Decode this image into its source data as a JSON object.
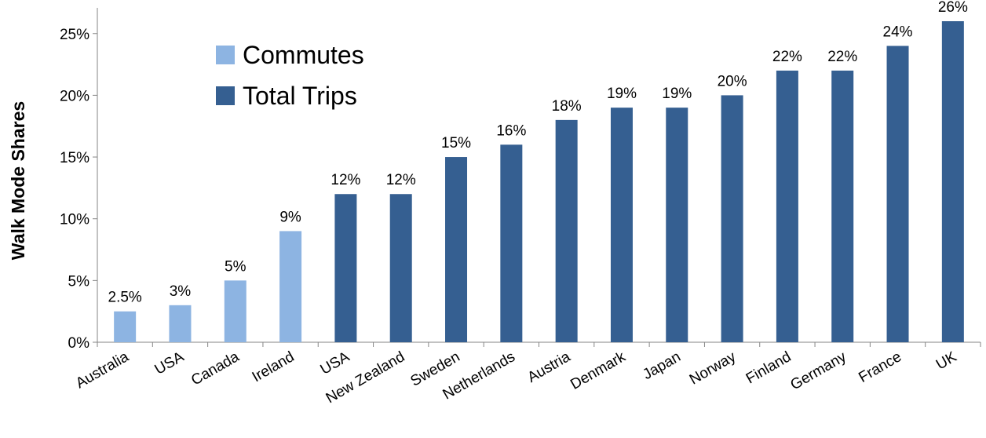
{
  "chart_data": {
    "type": "bar",
    "ylabel": "Walk Mode Shares",
    "ylim": [
      0,
      26
    ],
    "yticks": [
      0,
      5,
      10,
      15,
      20,
      25
    ],
    "ytick_labels": [
      "0%",
      "5%",
      "10%",
      "15%",
      "20%",
      "25%"
    ],
    "grid": false,
    "legend_position": "top-left",
    "categories": [
      "Australia",
      "USA",
      "Canada",
      "Ireland",
      "USA",
      "New Zealand",
      "Sweden",
      "Netherlands",
      "Austria",
      "Denmark",
      "Japan",
      "Norway",
      "Finland",
      "Germany",
      "France",
      "UK"
    ],
    "values": [
      2.5,
      3,
      5,
      9,
      12,
      12,
      15,
      16,
      18,
      19,
      19,
      20,
      22,
      22,
      24,
      26
    ],
    "value_labels": [
      "2.5%",
      "3%",
      "5%",
      "9%",
      "12%",
      "12%",
      "15%",
      "16%",
      "18%",
      "19%",
      "19%",
      "20%",
      "22%",
      "22%",
      "24%",
      "26%"
    ],
    "bar_series": [
      0,
      0,
      0,
      0,
      1,
      1,
      1,
      1,
      1,
      1,
      1,
      1,
      1,
      1,
      1,
      1
    ],
    "series": [
      {
        "name": "Commutes",
        "color": "#8db4e2"
      },
      {
        "name": "Total Trips",
        "color": "#355f91"
      }
    ]
  }
}
